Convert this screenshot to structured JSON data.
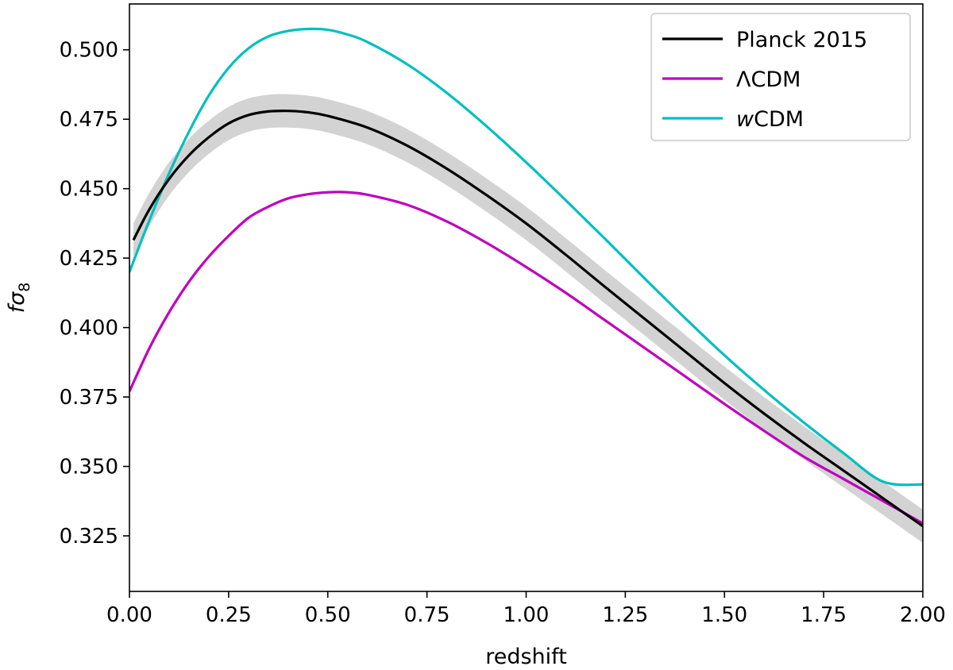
{
  "chart_data": {
    "type": "line",
    "xlabel": "redshift",
    "ylabel": {
      "main": "fσ",
      "sub": "8"
    },
    "xlim": [
      0.0,
      2.0
    ],
    "ylim": [
      0.305,
      0.5165
    ],
    "xticks": [
      0.0,
      0.25,
      0.5,
      0.75,
      1.0,
      1.25,
      1.5,
      1.75,
      2.0
    ],
    "xtick_labels": [
      "0.00",
      "0.25",
      "0.50",
      "0.75",
      "1.00",
      "1.25",
      "1.50",
      "1.75",
      "2.00"
    ],
    "yticks": [
      0.325,
      0.35,
      0.375,
      0.4,
      0.425,
      0.45,
      0.475,
      0.5
    ],
    "ytick_labels": [
      "0.325",
      "0.350",
      "0.375",
      "0.400",
      "0.425",
      "0.450",
      "0.475",
      "0.500"
    ],
    "legend_position": "top-right",
    "series": [
      {
        "name": "Planck 2015",
        "legend_label": {
          "prefix": "",
          "italic": "",
          "suffix": "Planck 2015"
        },
        "color": "#000000",
        "x": [
          0.01,
          0.05,
          0.1,
          0.15,
          0.2,
          0.25,
          0.3,
          0.35,
          0.4,
          0.45,
          0.5,
          0.6,
          0.7,
          0.8,
          0.9,
          1.0,
          1.1,
          1.2,
          1.3,
          1.4,
          1.5,
          1.6,
          1.7,
          1.8,
          1.9,
          2.0
        ],
        "y": [
          0.4315,
          0.4425,
          0.4535,
          0.462,
          0.4685,
          0.4735,
          0.4765,
          0.4778,
          0.478,
          0.4775,
          0.4762,
          0.472,
          0.4655,
          0.4572,
          0.4477,
          0.4375,
          0.4262,
          0.4145,
          0.403,
          0.3915,
          0.38,
          0.369,
          0.3585,
          0.3485,
          0.3385,
          0.3285
        ],
        "band": 0.006,
        "band_color": "#d3d3d3"
      },
      {
        "name": "ΛCDM",
        "legend_label": {
          "prefix": "",
          "italic": "",
          "suffix": "ΛCDM"
        },
        "color": "#bf00bf",
        "x": [
          0.0,
          0.05,
          0.1,
          0.15,
          0.2,
          0.25,
          0.3,
          0.35,
          0.4,
          0.45,
          0.5,
          0.55,
          0.6,
          0.7,
          0.8,
          0.9,
          1.0,
          1.1,
          1.2,
          1.3,
          1.4,
          1.5,
          1.6,
          1.7,
          1.8,
          1.9,
          2.0
        ],
        "y": [
          0.377,
          0.3925,
          0.4055,
          0.4165,
          0.4255,
          0.433,
          0.4395,
          0.4435,
          0.4465,
          0.448,
          0.4487,
          0.4487,
          0.4478,
          0.4442,
          0.4382,
          0.4305,
          0.4218,
          0.4125,
          0.4025,
          0.3925,
          0.3825,
          0.3725,
          0.3628,
          0.3535,
          0.3455,
          0.3375,
          0.3295
        ]
      },
      {
        "name": "wCDM",
        "legend_label": {
          "prefix": "",
          "italic": "w",
          "suffix": "CDM"
        },
        "color": "#00bfbf",
        "x": [
          0.0,
          0.05,
          0.1,
          0.15,
          0.2,
          0.25,
          0.3,
          0.35,
          0.4,
          0.45,
          0.5,
          0.55,
          0.6,
          0.7,
          0.8,
          0.9,
          1.0,
          1.1,
          1.2,
          1.3,
          1.4,
          1.5,
          1.6,
          1.7,
          1.8,
          1.9,
          2.0
        ],
        "y": [
          0.42,
          0.4385,
          0.4555,
          0.4705,
          0.4835,
          0.4935,
          0.5005,
          0.5048,
          0.5068,
          0.5075,
          0.5072,
          0.5055,
          0.5028,
          0.4948,
          0.4845,
          0.4725,
          0.4595,
          0.4458,
          0.4318,
          0.4175,
          0.4035,
          0.39,
          0.3775,
          0.3658,
          0.3548,
          0.3445,
          0.3435
        ]
      }
    ]
  }
}
